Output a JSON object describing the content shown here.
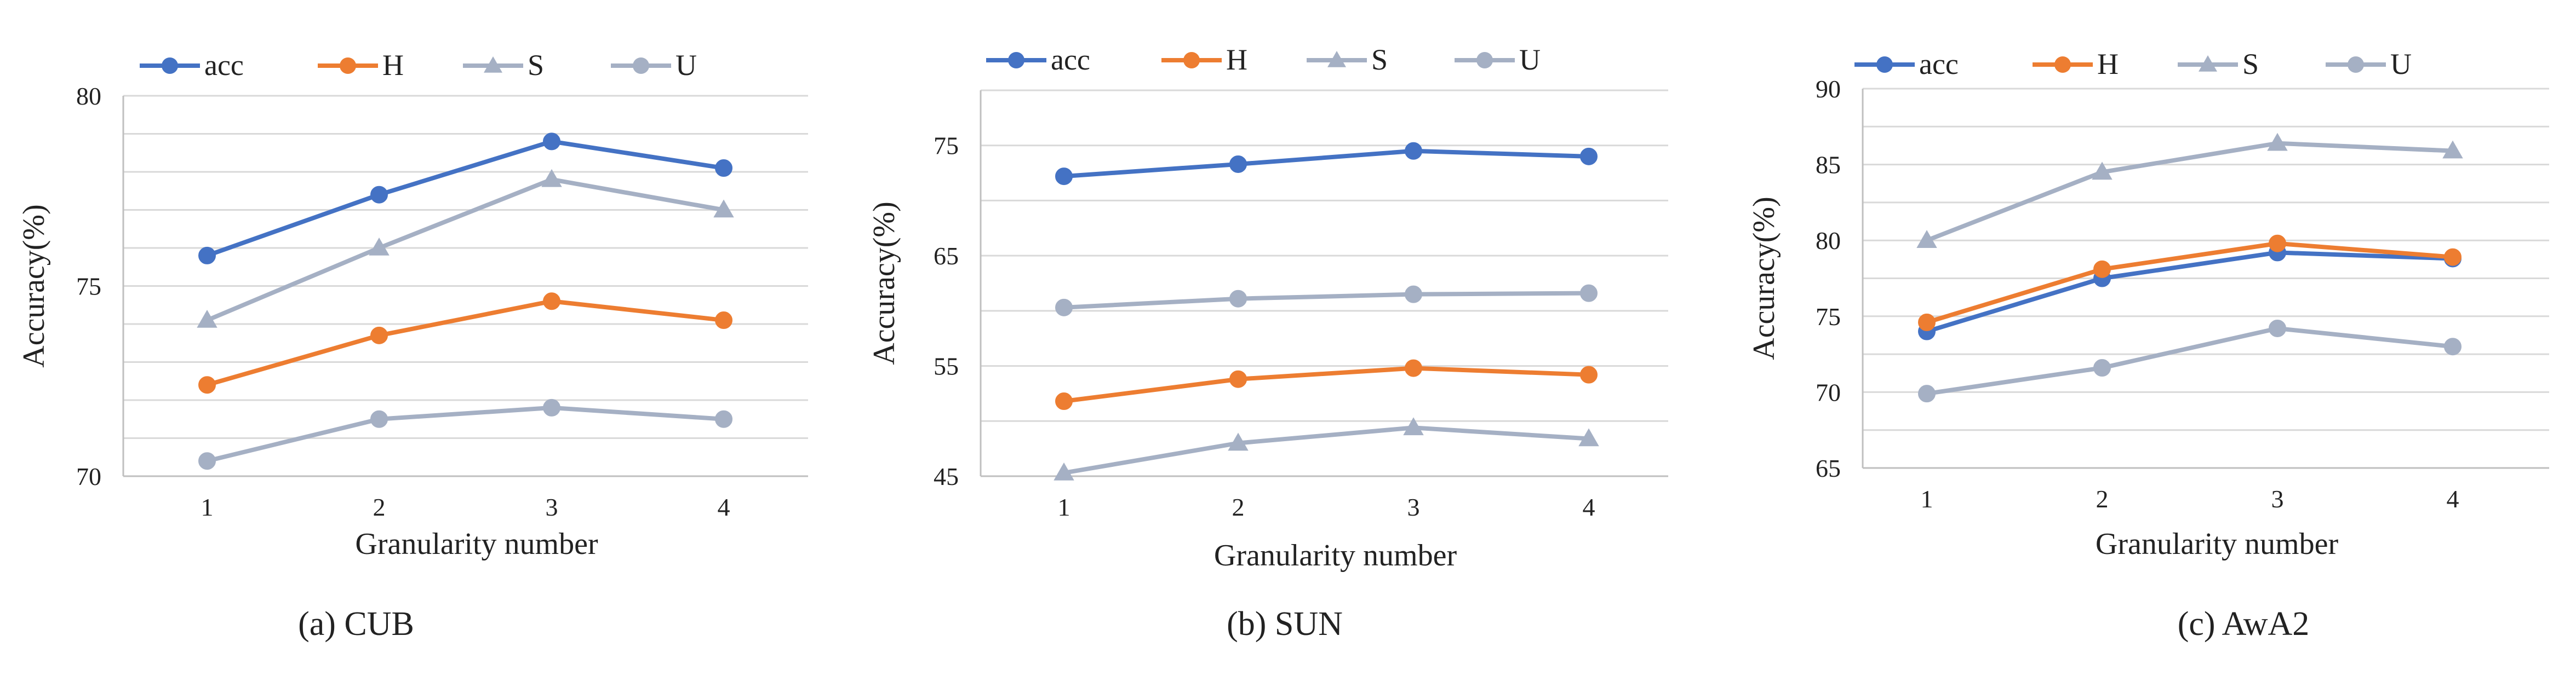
{
  "chart_data": [
    {
      "type": "line",
      "caption": "(a)  CUB",
      "xlabel": "Granularity number",
      "ylabel": "Accuracy(%)",
      "x": [
        1,
        2,
        3,
        4
      ],
      "ylim": [
        70,
        80
      ],
      "yticks": [
        70,
        75,
        80
      ],
      "y_minor_step": 1,
      "series": [
        {
          "name": "acc",
          "values": [
            75.8,
            77.4,
            78.8,
            78.1
          ],
          "color": "#4472C4",
          "marker": "circle"
        },
        {
          "name": "H",
          "values": [
            72.4,
            73.7,
            74.6,
            74.1
          ],
          "color": "#ED7D31",
          "marker": "circle"
        },
        {
          "name": "S",
          "values": [
            74.1,
            76.0,
            77.8,
            77.0
          ],
          "color": "#A5B0C4",
          "marker": "triangle"
        },
        {
          "name": "U",
          "values": [
            70.4,
            71.5,
            71.8,
            71.5
          ],
          "color": "#A5B0C4",
          "marker": "circle"
        }
      ],
      "legend": "top",
      "grid": true
    },
    {
      "type": "line",
      "caption": "(b)  SUN",
      "xlabel": "Granularity number",
      "ylabel": "Accuracy(%)",
      "x": [
        1,
        2,
        3,
        4
      ],
      "ylim": [
        45,
        80
      ],
      "yticks": [
        45,
        55,
        65,
        75
      ],
      "y_minor_step": 5,
      "series": [
        {
          "name": "acc",
          "values": [
            72.2,
            73.3,
            74.5,
            74.0
          ],
          "color": "#4472C4",
          "marker": "circle"
        },
        {
          "name": "H",
          "values": [
            51.8,
            53.8,
            54.8,
            54.2
          ],
          "color": "#ED7D31",
          "marker": "circle"
        },
        {
          "name": "S",
          "values": [
            45.3,
            48.0,
            49.4,
            48.4
          ],
          "color": "#A5B0C4",
          "marker": "triangle"
        },
        {
          "name": "U",
          "values": [
            60.3,
            61.1,
            61.5,
            61.6
          ],
          "color": "#A5B0C4",
          "marker": "circle"
        }
      ],
      "legend": "top",
      "grid": true
    },
    {
      "type": "line",
      "caption": "(c)  AwA2",
      "xlabel": "Granularity number",
      "ylabel": "Accuracy(%)",
      "x": [
        1,
        2,
        3,
        4
      ],
      "ylim": [
        65,
        90
      ],
      "yticks": [
        65,
        70,
        75,
        80,
        85,
        90
      ],
      "y_minor_step": 2.5,
      "series": [
        {
          "name": "acc",
          "values": [
            74.0,
            77.5,
            79.2,
            78.8
          ],
          "color": "#4472C4",
          "marker": "circle"
        },
        {
          "name": "H",
          "values": [
            74.6,
            78.1,
            79.8,
            78.9
          ],
          "color": "#ED7D31",
          "marker": "circle"
        },
        {
          "name": "S",
          "values": [
            80.0,
            84.5,
            86.4,
            85.9
          ],
          "color": "#A5B0C4",
          "marker": "triangle"
        },
        {
          "name": "U",
          "values": [
            69.9,
            71.6,
            74.2,
            73.0
          ],
          "color": "#A5B0C4",
          "marker": "circle"
        }
      ],
      "legend": "top",
      "grid": true
    }
  ]
}
